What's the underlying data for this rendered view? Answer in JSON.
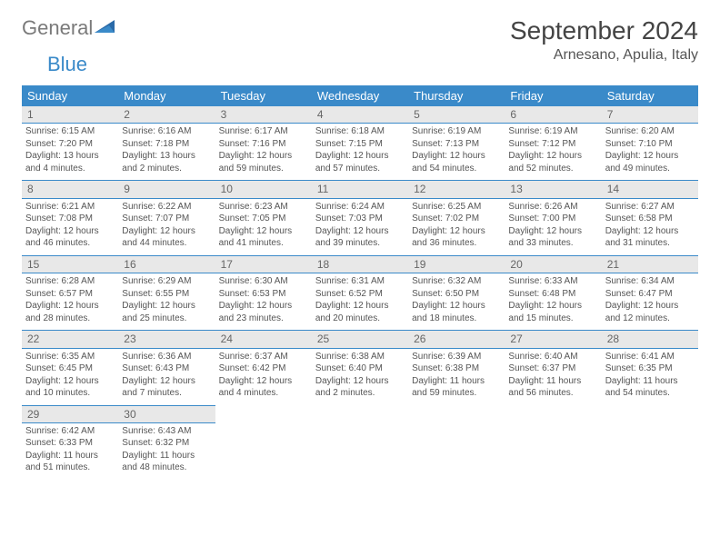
{
  "brand": {
    "part1": "General",
    "part2": "Blue"
  },
  "title": "September 2024",
  "location": "Arnesano, Apulia, Italy",
  "colors": {
    "header_bg": "#3a8ac9",
    "header_text": "#ffffff",
    "daynum_bg": "#e8e8e8",
    "border": "#3a8ac9",
    "body_text": "#555555",
    "logo_gray": "#7a7a7a",
    "logo_blue": "#3a8ac9"
  },
  "weekdays": [
    "Sunday",
    "Monday",
    "Tuesday",
    "Wednesday",
    "Thursday",
    "Friday",
    "Saturday"
  ],
  "weeks": [
    [
      {
        "n": "1",
        "sr": "6:15 AM",
        "ss": "7:20 PM",
        "d1": "13 hours",
        "d2": "and 4 minutes."
      },
      {
        "n": "2",
        "sr": "6:16 AM",
        "ss": "7:18 PM",
        "d1": "13 hours",
        "d2": "and 2 minutes."
      },
      {
        "n": "3",
        "sr": "6:17 AM",
        "ss": "7:16 PM",
        "d1": "12 hours",
        "d2": "and 59 minutes."
      },
      {
        "n": "4",
        "sr": "6:18 AM",
        "ss": "7:15 PM",
        "d1": "12 hours",
        "d2": "and 57 minutes."
      },
      {
        "n": "5",
        "sr": "6:19 AM",
        "ss": "7:13 PM",
        "d1": "12 hours",
        "d2": "and 54 minutes."
      },
      {
        "n": "6",
        "sr": "6:19 AM",
        "ss": "7:12 PM",
        "d1": "12 hours",
        "d2": "and 52 minutes."
      },
      {
        "n": "7",
        "sr": "6:20 AM",
        "ss": "7:10 PM",
        "d1": "12 hours",
        "d2": "and 49 minutes."
      }
    ],
    [
      {
        "n": "8",
        "sr": "6:21 AM",
        "ss": "7:08 PM",
        "d1": "12 hours",
        "d2": "and 46 minutes."
      },
      {
        "n": "9",
        "sr": "6:22 AM",
        "ss": "7:07 PM",
        "d1": "12 hours",
        "d2": "and 44 minutes."
      },
      {
        "n": "10",
        "sr": "6:23 AM",
        "ss": "7:05 PM",
        "d1": "12 hours",
        "d2": "and 41 minutes."
      },
      {
        "n": "11",
        "sr": "6:24 AM",
        "ss": "7:03 PM",
        "d1": "12 hours",
        "d2": "and 39 minutes."
      },
      {
        "n": "12",
        "sr": "6:25 AM",
        "ss": "7:02 PM",
        "d1": "12 hours",
        "d2": "and 36 minutes."
      },
      {
        "n": "13",
        "sr": "6:26 AM",
        "ss": "7:00 PM",
        "d1": "12 hours",
        "d2": "and 33 minutes."
      },
      {
        "n": "14",
        "sr": "6:27 AM",
        "ss": "6:58 PM",
        "d1": "12 hours",
        "d2": "and 31 minutes."
      }
    ],
    [
      {
        "n": "15",
        "sr": "6:28 AM",
        "ss": "6:57 PM",
        "d1": "12 hours",
        "d2": "and 28 minutes."
      },
      {
        "n": "16",
        "sr": "6:29 AM",
        "ss": "6:55 PM",
        "d1": "12 hours",
        "d2": "and 25 minutes."
      },
      {
        "n": "17",
        "sr": "6:30 AM",
        "ss": "6:53 PM",
        "d1": "12 hours",
        "d2": "and 23 minutes."
      },
      {
        "n": "18",
        "sr": "6:31 AM",
        "ss": "6:52 PM",
        "d1": "12 hours",
        "d2": "and 20 minutes."
      },
      {
        "n": "19",
        "sr": "6:32 AM",
        "ss": "6:50 PM",
        "d1": "12 hours",
        "d2": "and 18 minutes."
      },
      {
        "n": "20",
        "sr": "6:33 AM",
        "ss": "6:48 PM",
        "d1": "12 hours",
        "d2": "and 15 minutes."
      },
      {
        "n": "21",
        "sr": "6:34 AM",
        "ss": "6:47 PM",
        "d1": "12 hours",
        "d2": "and 12 minutes."
      }
    ],
    [
      {
        "n": "22",
        "sr": "6:35 AM",
        "ss": "6:45 PM",
        "d1": "12 hours",
        "d2": "and 10 minutes."
      },
      {
        "n": "23",
        "sr": "6:36 AM",
        "ss": "6:43 PM",
        "d1": "12 hours",
        "d2": "and 7 minutes."
      },
      {
        "n": "24",
        "sr": "6:37 AM",
        "ss": "6:42 PM",
        "d1": "12 hours",
        "d2": "and 4 minutes."
      },
      {
        "n": "25",
        "sr": "6:38 AM",
        "ss": "6:40 PM",
        "d1": "12 hours",
        "d2": "and 2 minutes."
      },
      {
        "n": "26",
        "sr": "6:39 AM",
        "ss": "6:38 PM",
        "d1": "11 hours",
        "d2": "and 59 minutes."
      },
      {
        "n": "27",
        "sr": "6:40 AM",
        "ss": "6:37 PM",
        "d1": "11 hours",
        "d2": "and 56 minutes."
      },
      {
        "n": "28",
        "sr": "6:41 AM",
        "ss": "6:35 PM",
        "d1": "11 hours",
        "d2": "and 54 minutes."
      }
    ],
    [
      {
        "n": "29",
        "sr": "6:42 AM",
        "ss": "6:33 PM",
        "d1": "11 hours",
        "d2": "and 51 minutes."
      },
      {
        "n": "30",
        "sr": "6:43 AM",
        "ss": "6:32 PM",
        "d1": "11 hours",
        "d2": "and 48 minutes."
      },
      null,
      null,
      null,
      null,
      null
    ]
  ],
  "labels": {
    "sunrise": "Sunrise:",
    "sunset": "Sunset:",
    "daylight": "Daylight:"
  }
}
